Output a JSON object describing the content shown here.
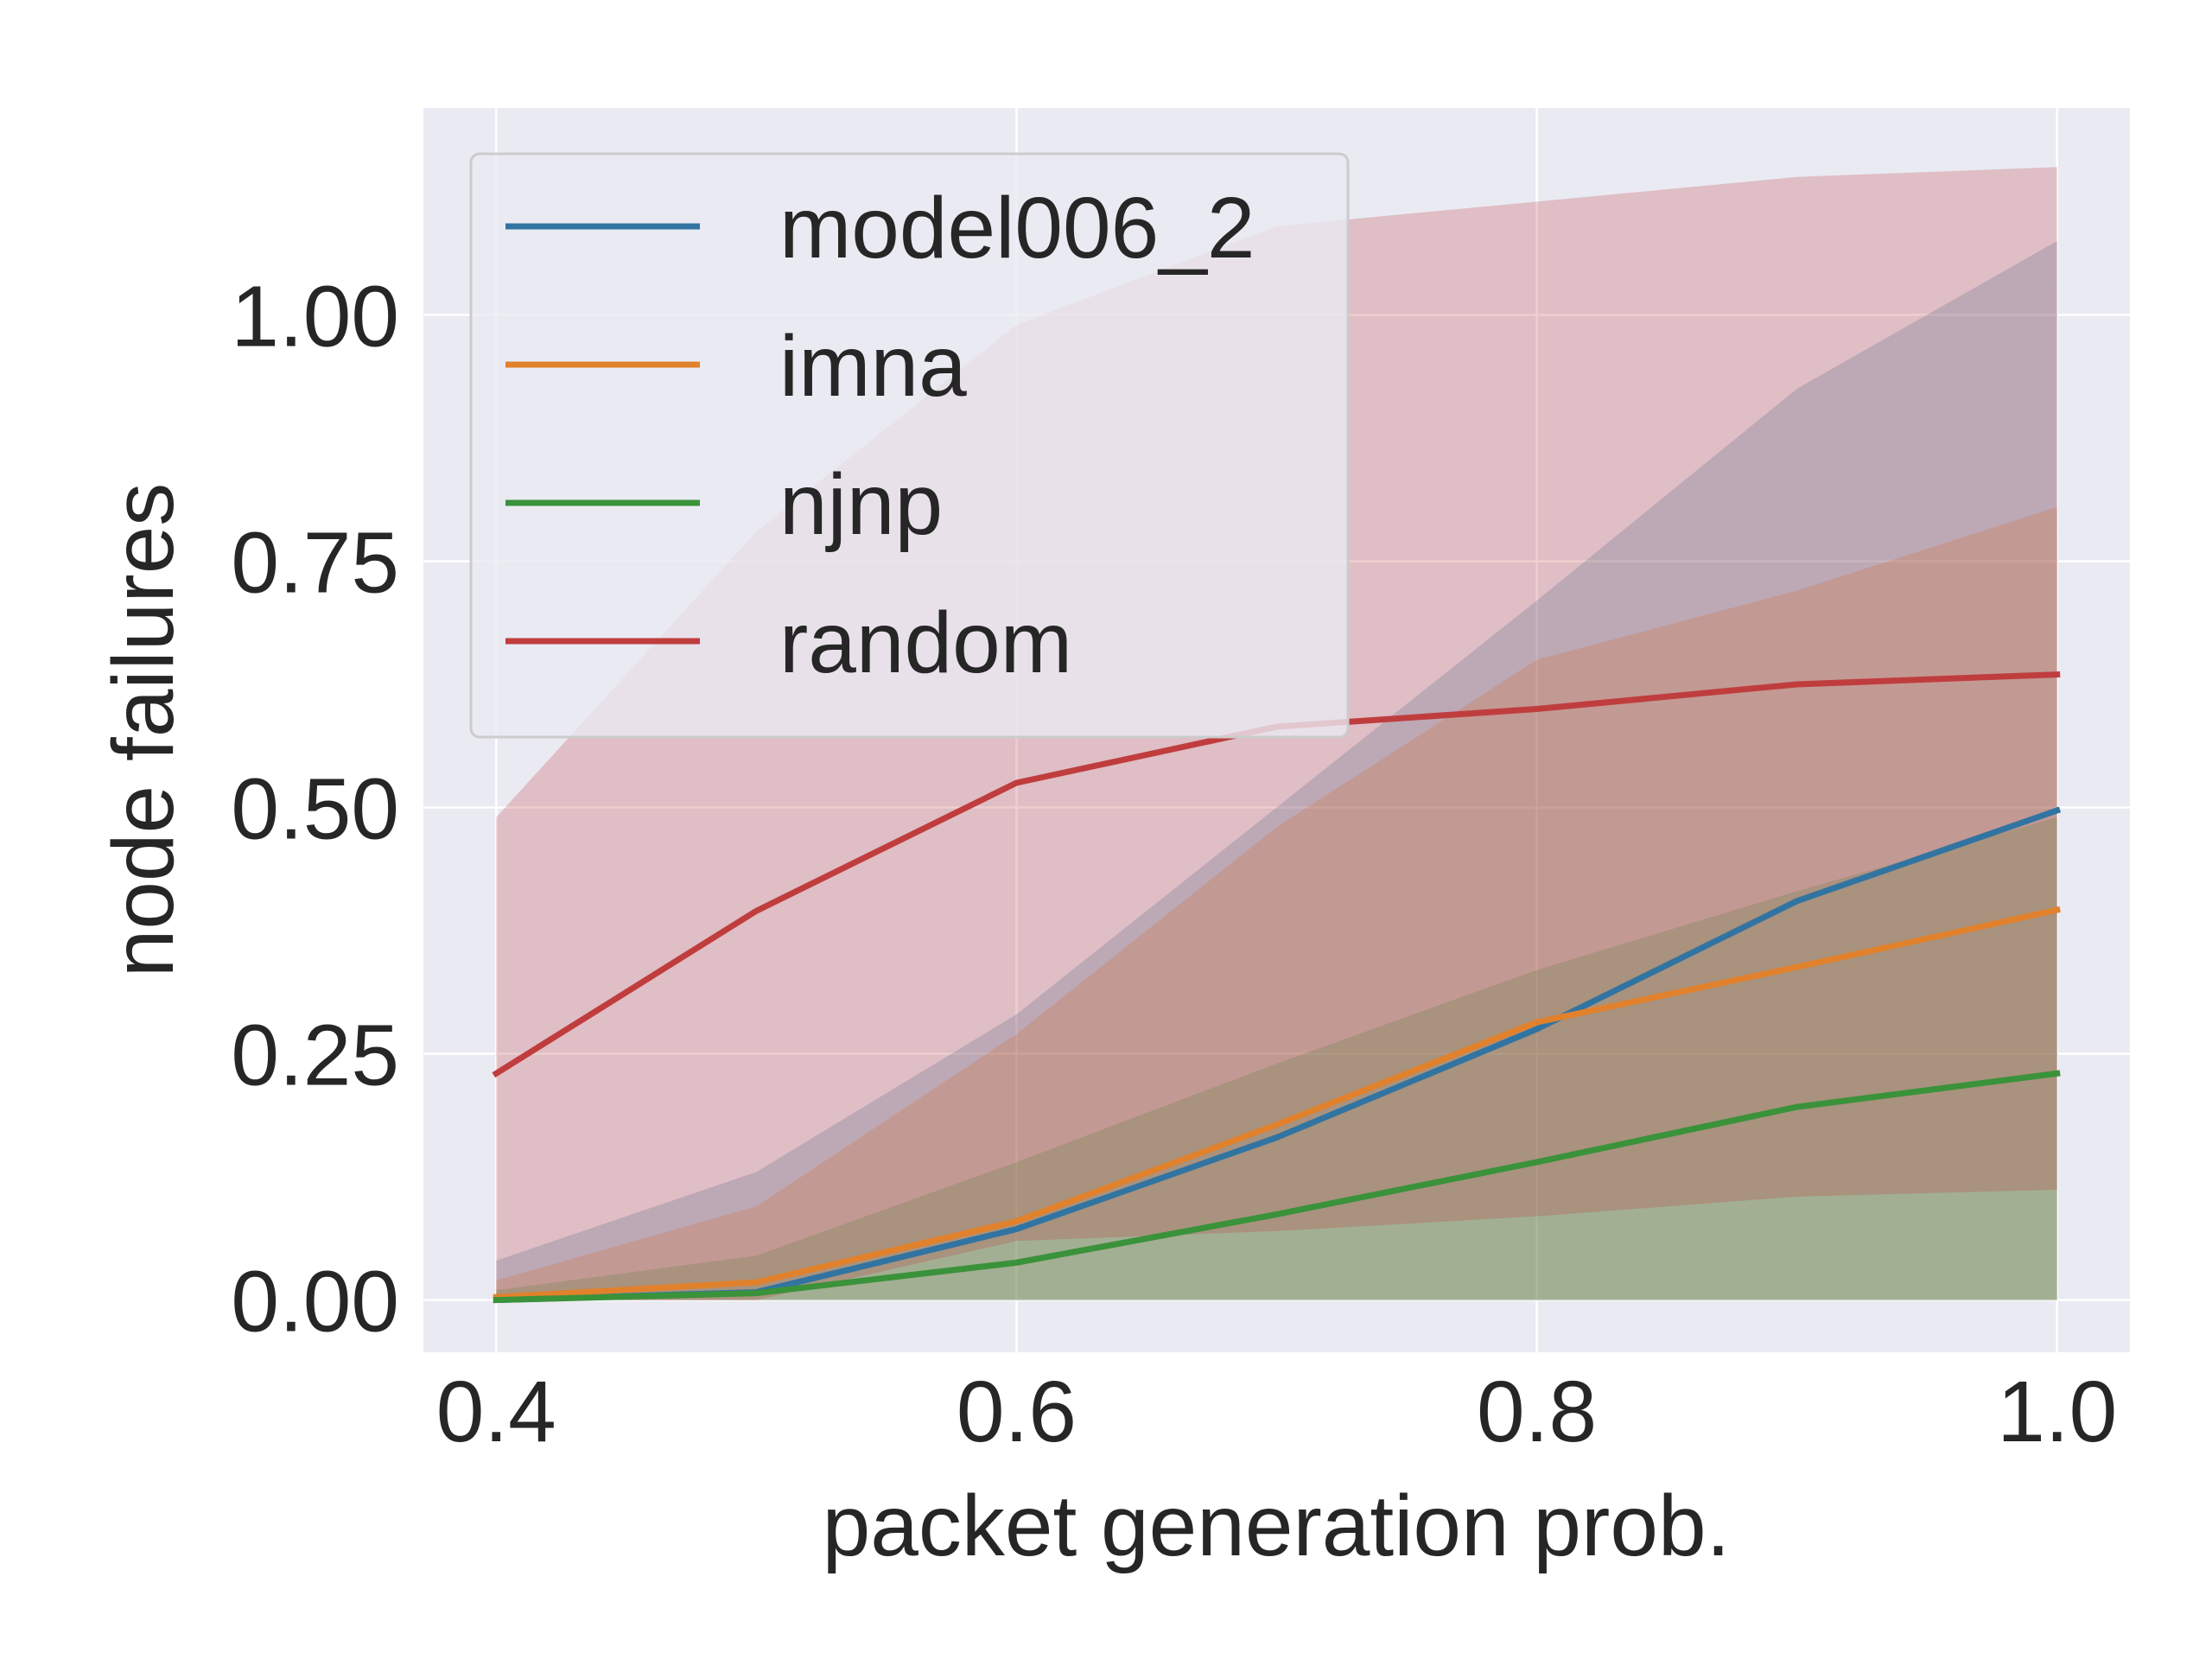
{
  "chart_data": {
    "type": "line",
    "xlabel": "packet generation prob.",
    "ylabel": "node failures",
    "xlim": [
      0.372,
      1.028
    ],
    "ylim": [
      -0.053,
      1.21
    ],
    "x_ticks": [
      {
        "value": 0.4,
        "label": "0.4"
      },
      {
        "value": 0.6,
        "label": "0.6"
      },
      {
        "value": 0.8,
        "label": "0.8"
      },
      {
        "value": 1.0,
        "label": "1.0"
      }
    ],
    "y_ticks": [
      {
        "value": 0.0,
        "label": "0.00"
      },
      {
        "value": 0.25,
        "label": "0.25"
      },
      {
        "value": 0.5,
        "label": "0.50"
      },
      {
        "value": 0.75,
        "label": "0.75"
      },
      {
        "value": 1.0,
        "label": "1.00"
      }
    ],
    "grid": true,
    "legend_position": "top-left",
    "background": "#eaeaf2",
    "x": [
      0.4,
      0.5,
      0.6,
      0.7,
      0.8,
      0.9,
      1.0
    ],
    "series": [
      {
        "name": "model006_2",
        "color": "#3274a1",
        "values": [
          0.0,
          0.008,
          0.072,
          0.165,
          0.275,
          0.405,
          0.497
        ],
        "lower": [
          0.0,
          0.0,
          0.0,
          0.0,
          0.0,
          0.0,
          0.0
        ],
        "upper": [
          0.04,
          0.13,
          0.29,
          0.5,
          0.71,
          0.925,
          1.075
        ]
      },
      {
        "name": "imna",
        "color": "#e1812c",
        "values": [
          0.003,
          0.018,
          0.08,
          0.178,
          0.282,
          0.338,
          0.396
        ],
        "lower": [
          0.0,
          0.0,
          0.0,
          0.0,
          0.0,
          0.0,
          0.0
        ],
        "upper": [
          0.02,
          0.095,
          0.27,
          0.48,
          0.65,
          0.72,
          0.805
        ]
      },
      {
        "name": "njnp",
        "color": "#3a923a",
        "values": [
          0.0,
          0.007,
          0.038,
          0.087,
          0.14,
          0.196,
          0.23
        ],
        "lower": [
          0.0,
          0.0,
          0.0,
          0.0,
          0.0,
          0.0,
          0.0
        ],
        "upper": [
          0.01,
          0.045,
          0.14,
          0.24,
          0.335,
          0.415,
          0.49
        ]
      },
      {
        "name": "random",
        "color": "#c03d3e",
        "values": [
          0.23,
          0.395,
          0.525,
          0.582,
          0.6,
          0.625,
          0.635
        ],
        "lower": [
          0.0,
          0.0,
          0.06,
          0.07,
          0.085,
          0.105,
          0.112
        ],
        "upper": [
          0.49,
          0.78,
          0.99,
          1.09,
          1.115,
          1.14,
          1.15
        ]
      }
    ]
  }
}
